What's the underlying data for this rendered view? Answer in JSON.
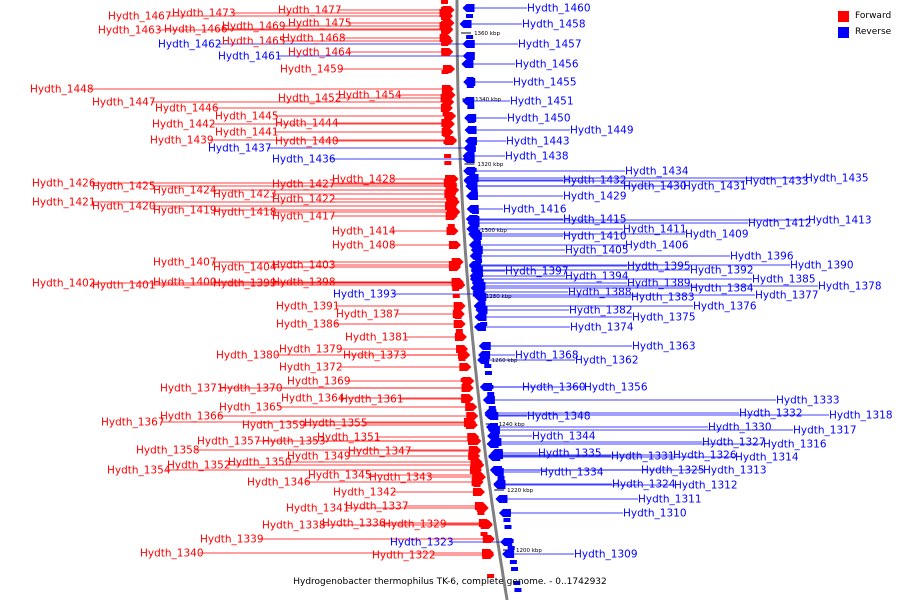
{
  "caption": "Hydrogenobacter thermophilus TK-6, complete genome. - 0..1742932",
  "legend": [
    {
      "label": "Forward",
      "color": "#ff0000"
    },
    {
      "label": "Reverse",
      "color": "#0000ff"
    }
  ],
  "colors": {
    "forward": "#ff0000",
    "reverse": "#0000ff",
    "backbone": "#808080"
  },
  "scale_labels": [
    "1360 kbp",
    "1340 kbp",
    "1320 kbp",
    "1300 kbp",
    "1280 kbp",
    "1260 kbp",
    "1240 kbp",
    "1220 kbp",
    "1200 kbp"
  ],
  "forward_labels": [
    "Hydth_1477",
    "Hydth_1467",
    "Hydth_1473",
    "Hydth_1475",
    "Hydth_1463",
    "Hydth_1466",
    "Hydth_1469",
    "Hydth_1465",
    "Hydth_1468",
    "Hydth_1464",
    "Hydth_1459",
    "Hydth_1448",
    "Hydth_1454",
    "Hydth_1452",
    "Hydth_1447",
    "Hydth_1446",
    "Hydth_1445",
    "Hydth_1444",
    "Hydth_1442",
    "Hydth_1441",
    "Hydth_1440",
    "Hydth_1439",
    "Hydth_1428",
    "Hydth_1427",
    "Hydth_1426",
    "Hydth_1425",
    "Hydth_1424",
    "Hydth_1423",
    "Hydth_1422",
    "Hydth_1421",
    "Hydth_1420",
    "Hydth_1419",
    "Hydth_1418",
    "Hydth_1417",
    "Hydth_1414",
    "Hydth_1408",
    "Hydth_1407",
    "Hydth_1404",
    "Hydth_1403",
    "Hydth_1402",
    "Hydth_1401",
    "Hydth_1400",
    "Hydth_1399",
    "Hydth_1398",
    "Hydth_1391",
    "Hydth_1387",
    "Hydth_1386",
    "Hydth_1381",
    "Hydth_1379",
    "Hydth_1380",
    "Hydth_1373",
    "Hydth_1372",
    "Hydth_1369",
    "Hydth_1371",
    "Hydth_1370",
    "Hydth_1364",
    "Hydth_1361",
    "Hydth_1365",
    "Hydth_1366",
    "Hydth_1367",
    "Hydth_1359",
    "Hydth_1355",
    "Hydth_1357",
    "Hydth_1353",
    "Hydth_1351",
    "Hydth_1358",
    "Hydth_1352",
    "Hydth_1350",
    "Hydth_1349",
    "Hydth_1347",
    "Hydth_1354",
    "Hydth_1345",
    "Hydth_1343",
    "Hydth_1346",
    "Hydth_1342",
    "Hydth_1341",
    "Hydth_1337",
    "Hydth_1338",
    "Hydth_1336",
    "Hydth_1329",
    "Hydth_1339",
    "Hydth_1340",
    "Hydth_1322"
  ],
  "reverse_labels": [
    "Hydth_1460",
    "Hydth_1458",
    "Hydth_1462",
    "Hydth_1461",
    "Hydth_1457",
    "Hydth_1456",
    "Hydth_1455",
    "Hydth_1451",
    "Hydth_1450",
    "Hydth_1437",
    "Hydth_1436",
    "Hydth_1449",
    "Hydth_1443",
    "Hydth_1438",
    "Hydth_1434",
    "Hydth_1432",
    "Hydth_1430",
    "Hydth_1431",
    "Hydth_1433",
    "Hydth_1435",
    "Hydth_1429",
    "Hydth_1416",
    "Hydth_1415",
    "Hydth_1411",
    "Hydth_1412",
    "Hydth_1413",
    "Hydth_1410",
    "Hydth_1409",
    "Hydth_1405",
    "Hydth_1406",
    "Hydth_1396",
    "Hydth_1390",
    "Hydth_1397",
    "Hydth_1395",
    "Hydth_1392",
    "Hydth_1394",
    "Hydth_1385",
    "Hydth_1389",
    "Hydth_1384",
    "Hydth_1378",
    "Hydth_1393",
    "Hydth_1388",
    "Hydth_1383",
    "Hydth_1377",
    "Hydth_1376",
    "Hydth_1382",
    "Hydth_1375",
    "Hydth_1374",
    "Hydth_1363",
    "Hydth_1368",
    "Hydth_1362",
    "Hydth_1360",
    "Hydth_1356",
    "Hydth_1333",
    "Hydth_1332",
    "Hydth_1318",
    "Hydth_1348",
    "Hydth_1330",
    "Hydth_1317",
    "Hydth_1344",
    "Hydth_1327",
    "Hydth_1316",
    "Hydth_1335",
    "Hydth_1331",
    "Hydth_1326",
    "Hydth_1314",
    "Hydth_1334",
    "Hydth_1325",
    "Hydth_1313",
    "Hydth_1324",
    "Hydth_1312",
    "Hydth_1311",
    "Hydth_1310",
    "Hydth_1323",
    "Hydth_1309"
  ]
}
